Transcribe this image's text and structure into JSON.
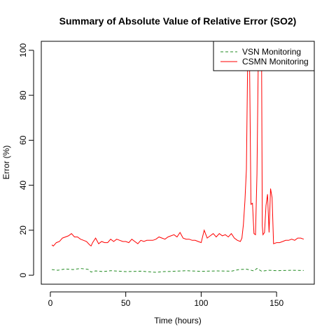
{
  "chart_data": {
    "type": "line",
    "title": "Summary of Absolute Value of Relative Error (SO2)",
    "xlabel": "Time (hours)",
    "ylabel": "Error (%)",
    "xlim": [
      -6,
      175
    ],
    "ylim": [
      -4,
      104
    ],
    "xticks": [
      0,
      50,
      100,
      150
    ],
    "yticks": [
      0,
      20,
      40,
      60,
      80,
      100
    ],
    "grid": false,
    "legend_position": "top-right",
    "series": [
      {
        "name": "VSN Monitoring",
        "color": "#228B22",
        "dash": "dashed",
        "x": [
          1,
          5,
          10,
          15,
          20,
          25,
          27,
          30,
          35,
          40,
          50,
          60,
          70,
          75,
          80,
          90,
          100,
          110,
          120,
          125,
          130,
          135,
          137,
          140,
          145,
          150,
          160,
          168
        ],
        "y": [
          2.5,
          2.2,
          2.8,
          2.5,
          3.0,
          2.6,
          1.4,
          1.9,
          1.6,
          2.0,
          1.6,
          1.8,
          1.3,
          1.6,
          1.7,
          2.0,
          1.7,
          1.9,
          1.8,
          2.5,
          2.7,
          1.9,
          3.0,
          1.8,
          2.2,
          2.0,
          2.2,
          2.1
        ]
      },
      {
        "name": "CSMN Monitoring",
        "color": "#FF0000",
        "dash": "solid",
        "x": [
          1,
          2,
          4,
          6,
          8,
          10,
          12,
          14,
          16,
          18,
          20,
          22,
          24,
          26,
          27,
          28,
          30,
          32,
          34,
          36,
          38,
          40,
          42,
          44,
          46,
          48,
          50,
          52,
          54,
          56,
          58,
          60,
          62,
          64,
          66,
          68,
          70,
          72,
          74,
          76,
          78,
          80,
          82,
          84,
          86,
          88,
          90,
          92,
          94,
          96,
          98,
          100,
          102,
          104,
          106,
          108,
          110,
          112,
          114,
          116,
          118,
          120,
          122,
          124,
          126,
          127,
          128,
          129,
          130,
          131,
          131.5,
          132,
          133,
          134,
          135,
          136,
          137,
          138,
          139,
          140,
          140.5,
          141,
          142,
          143,
          144,
          145,
          146,
          147,
          148,
          150,
          152,
          154,
          156,
          158,
          160,
          162,
          164,
          166,
          168
        ],
        "y": [
          13.5,
          13.0,
          14.5,
          15.0,
          16.5,
          17.0,
          17.5,
          18.5,
          17.0,
          17.0,
          16.0,
          15.5,
          15.0,
          13.5,
          13.0,
          14.5,
          16.5,
          14.0,
          15.0,
          14.5,
          14.5,
          16.0,
          15.0,
          16.0,
          15.5,
          15.0,
          15.0,
          14.5,
          16.0,
          15.0,
          14.0,
          15.5,
          15.0,
          15.5,
          15.5,
          15.5,
          16.0,
          17.0,
          16.5,
          16.0,
          17.0,
          17.5,
          18.0,
          17.0,
          19.0,
          16.5,
          16.0,
          16.0,
          15.5,
          15.5,
          15.0,
          14.5,
          20.0,
          16.5,
          17.5,
          18.5,
          17.0,
          18.5,
          17.5,
          18.0,
          17.0,
          18.5,
          16.5,
          15.5,
          15.0,
          16.5,
          22.5,
          33.0,
          47.0,
          105.0,
          105.0,
          102.0,
          31.5,
          32.0,
          18.5,
          18.0,
          45.0,
          105.0,
          105.0,
          104.0,
          22.0,
          18.0,
          19.0,
          31.0,
          36.0,
          19.0,
          38.5,
          34.5,
          14.0,
          14.5,
          14.5,
          15.0,
          15.5,
          15.5,
          16.0,
          15.5,
          16.5,
          16.5,
          16.0
        ]
      }
    ]
  }
}
